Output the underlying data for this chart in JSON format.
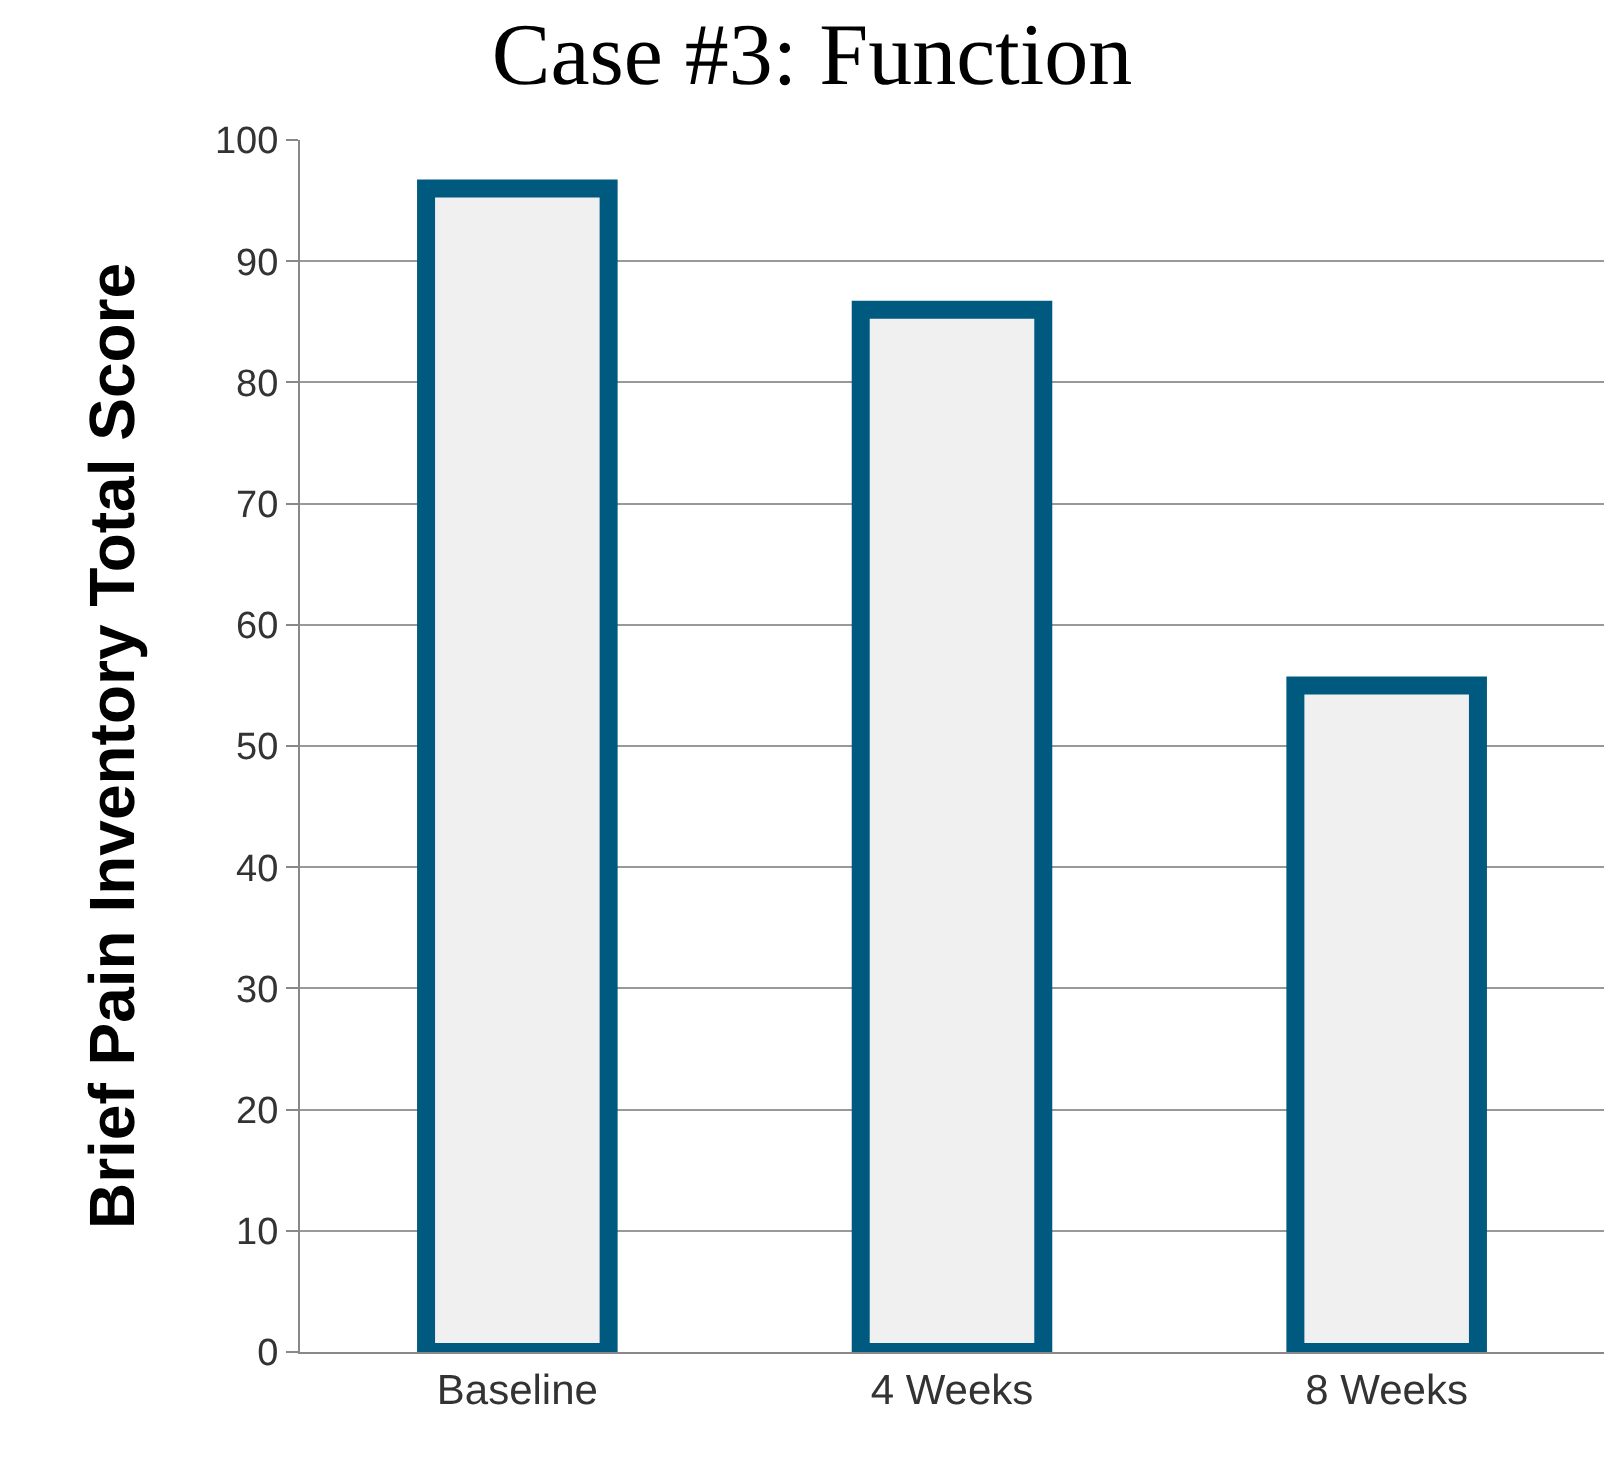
{
  "chart_data": {
    "type": "bar",
    "title": "Case #3: Function",
    "ylabel": "Brief Pain Inventory Total Score",
    "categories": [
      "Baseline",
      "4 Weeks",
      "8 Weeks"
    ],
    "series": [
      {
        "color": "#f0f0f0",
        "values": [
          96,
          86,
          55
        ]
      }
    ],
    "ylim": [
      0,
      100
    ],
    "yticks": [
      0,
      10,
      20,
      30,
      40,
      50,
      60,
      70,
      80,
      90,
      100
    ],
    "grid": "y",
    "legend": false
  }
}
